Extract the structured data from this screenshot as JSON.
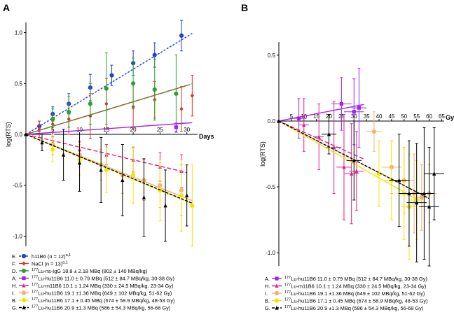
{
  "panels": {
    "a": "A",
    "b": "B"
  },
  "colors": {
    "E": "#1f3fd6",
    "F": "#e0302a",
    "D": "#2ca02c",
    "A": "#a020f0",
    "H": "#e0218a",
    "I": "#f4b070",
    "B": "#f2e600",
    "G": "#000000"
  },
  "chart_data": [
    {
      "type": "scatter",
      "panel": "A",
      "xlabel": "Days",
      "ylabel": "log(RTS)",
      "xlim": [
        0,
        32
      ],
      "ylim": [
        -1.1,
        1.1
      ],
      "xticks": [
        5,
        10,
        15,
        20,
        25,
        30
      ],
      "yticks": [
        -1.0,
        -0.5,
        0.0,
        0.5,
        1.0
      ],
      "ytick_labels": [
        "-1.0",
        "-0.5",
        "0.0",
        "0.5",
        "1.0"
      ],
      "series": [
        {
          "key": "E",
          "legend": "h11B6 (n = 12)",
          "sup": "a,1",
          "marker": "circle",
          "fit": [
            0.0,
            0.032
          ],
          "fit_range": [
            0,
            31
          ],
          "dash": "3,2",
          "x": [
            2.5,
            5,
            8,
            12,
            16,
            20,
            24,
            29
          ],
          "y": [
            0.08,
            0.2,
            0.3,
            0.46,
            0.58,
            0.7,
            0.78,
            0.97
          ],
          "err": [
            0.05,
            0.07,
            0.1,
            0.13,
            0.1,
            0.12,
            0.12,
            0.15
          ]
        },
        {
          "key": "F",
          "legend": "NaCl (n = 13)",
          "sup": "a,1",
          "marker": "diamond",
          "fit": [
            0.0,
            0.016
          ],
          "fit_range": [
            0,
            30
          ],
          "dash": "",
          "x": [
            2.5,
            5,
            8,
            12,
            15,
            20,
            24,
            29,
            31
          ],
          "y": [
            0.05,
            0.1,
            0.15,
            0.18,
            0.3,
            0.27,
            0.34,
            0.25,
            0.38
          ],
          "err": [
            0.08,
            0.1,
            0.15,
            0.22,
            0.25,
            0.22,
            0.18,
            0.22,
            0.2
          ]
        },
        {
          "key": "D",
          "legend": "Lu-ns-IgG 18.8 ± 2.18 MBq (802 ± 140 MBq/kg)",
          "sup": "177",
          "marker": "circle",
          "fit": [
            0.0,
            0.016
          ],
          "fit_range": [
            0,
            31
          ],
          "dash": "5,2,1,2",
          "x": [
            5,
            8,
            12,
            15,
            20,
            24,
            28
          ],
          "y": [
            0.15,
            0.22,
            0.3,
            0.45,
            0.5,
            0.44,
            0.4
          ],
          "err": [
            0.1,
            0.15,
            0.2,
            0.35,
            0.25,
            0.3,
            0.38
          ]
        },
        {
          "key": "A",
          "legend": "Lu-hu11B6 11.0 ± 0.79 MBq (512 ± 84.7 MBq/kg, 30-38 Gy)",
          "sup": "177",
          "marker": "square",
          "fit": [
            0.0,
            0.0037
          ],
          "fit_range": [
            0,
            31
          ],
          "dash": "",
          "x": [
            28
          ],
          "y": [
            0.07
          ],
          "err": [
            0.04
          ]
        },
        {
          "key": "H",
          "legend": "Lu-m11B6 10.1 ± 1.24 MBq (330 ± 24.5 MBq/kg, 23-34 Gy)",
          "sup": "177",
          "marker": "triangle",
          "fit": [
            0.0,
            -0.0125
          ],
          "fit_range": [
            0,
            30
          ],
          "dash": "6,3",
          "x": [
            5,
            10,
            15,
            20,
            25,
            29
          ],
          "y": [
            -0.08,
            -0.15,
            -0.2,
            -0.25,
            -0.32,
            -0.36
          ],
          "err": [
            0.06,
            0.08,
            0.1,
            0.12,
            0.14,
            0.16
          ]
        },
        {
          "key": "I",
          "legend": "Lu-hu11B6 19.1 ±1.36 MBq (649 ± 102 MBq/kg, 51-62 Gy)",
          "sup": "177",
          "marker": "circle",
          "fit": [
            0.0,
            -0.021
          ],
          "fit_range": [
            0,
            31
          ],
          "dash": "",
          "x": [
            5,
            10,
            14,
            18,
            22,
            25,
            29
          ],
          "y": [
            -0.1,
            -0.2,
            -0.3,
            -0.4,
            -0.45,
            -0.5,
            -0.55
          ],
          "err": [
            0.1,
            0.12,
            0.15,
            0.18,
            0.2,
            0.22,
            0.25
          ]
        },
        {
          "key": "B",
          "legend": "Lu-hu11B6 17.1 ± 0.45 MBq (674 ± 58.9 MBq/kg, 48-53 Gy)",
          "sup": "177",
          "marker": "circle",
          "fit": [
            0.0,
            -0.022
          ],
          "fit_range": [
            0,
            31
          ],
          "dash": "",
          "x": [
            5,
            10,
            15,
            20,
            25,
            29,
            31
          ],
          "y": [
            -0.15,
            -0.25,
            -0.35,
            -0.4,
            -0.55,
            -0.6,
            -0.7
          ],
          "err": [
            0.12,
            0.15,
            0.22,
            0.28,
            0.3,
            0.35,
            0.4
          ]
        },
        {
          "key": "G",
          "legend": "Lu-hu11B6 20.9 ±1.3 MBq (586 ± 54.3 MBq/kg, 56-68 Gy)",
          "sup": "177",
          "marker": "triangle",
          "fit": [
            0.0,
            -0.0218
          ],
          "fit_range": [
            0,
            31
          ],
          "dash": "4,2",
          "x": [
            3,
            7,
            10,
            14,
            18,
            22,
            26,
            30
          ],
          "y": [
            -0.08,
            -0.2,
            -0.28,
            -0.35,
            -0.45,
            -0.62,
            -0.7,
            -0.6
          ],
          "err": [
            0.08,
            0.25,
            0.28,
            0.32,
            0.35,
            0.38,
            0.35,
            0.3
          ]
        }
      ]
    },
    {
      "type": "scatter",
      "panel": "B",
      "xlabel": "Gy",
      "ylabel": "log(RTS)",
      "xlim": [
        0,
        66
      ],
      "ylim": [
        -1.1,
        0.6
      ],
      "xticks": [
        5,
        10,
        15,
        20,
        25,
        30,
        35,
        40,
        45,
        50,
        55,
        60,
        65
      ],
      "yticks": [
        -1.0,
        -0.5,
        0.0,
        0.5
      ],
      "ytick_labels": [
        "-1.0",
        "-0.5",
        "0.0",
        "0.5"
      ],
      "series": [
        {
          "key": "A",
          "legend": "Lu-hu11B6 11.0 ± 0.79 MBq (512 ± 84.7 MBq/kg, 30-38 Gy)",
          "sup": "177",
          "marker": "square",
          "fit": [
            0.0,
            0.0037
          ],
          "fit_range": [
            0,
            34
          ],
          "dash": "",
          "x": [
            8,
            25,
            30,
            32
          ],
          "y": [
            0.02,
            0.13,
            0.07,
            0.1
          ],
          "err": [
            0.15,
            0.2,
            0.25,
            0.3
          ],
          "xerr": [
            3,
            4,
            4,
            3
          ]
        },
        {
          "key": "H",
          "legend": "Lu-m11B6 10.1 ± 1.24 MBq (330 ± 24.5 MBq/kg, 23-34 Gy)",
          "sup": "177",
          "marker": "triangle",
          "fit": [
            0.0,
            -0.0085
          ],
          "fit_range": [
            0,
            34
          ],
          "dash": "6,3",
          "x": [
            10,
            16,
            22,
            26,
            29,
            31
          ],
          "y": [
            -0.03,
            -0.12,
            -0.2,
            -0.35,
            -0.4,
            -0.38
          ],
          "err": [
            0.2,
            0.25,
            0.35,
            0.4,
            0.38,
            0.3
          ],
          "xerr": [
            2,
            2,
            3,
            3,
            3,
            3
          ]
        },
        {
          "key": "I",
          "legend": "Lu-hu11B6 19.1 ±1.36 MBq (649 ± 102 MBq/kg, 51-62 Gy)",
          "sup": "177",
          "marker": "circle",
          "fit": [
            0.0,
            -0.0098
          ],
          "fit_range": [
            0,
            60
          ],
          "dash": "",
          "x": [
            38,
            45,
            50,
            54,
            57,
            60
          ],
          "y": [
            -0.08,
            -0.35,
            -0.45,
            -0.55,
            -0.58,
            -0.55
          ],
          "err": [
            0.15,
            0.2,
            0.25,
            0.3,
            0.25,
            0.22
          ],
          "xerr": [
            3,
            4,
            4,
            3,
            3,
            3
          ]
        },
        {
          "key": "B",
          "legend": "Lu-hu11B6 17.1 ± 0.45 MBq (674 ± 58.9 MBq/kg, 48-53 Gy)",
          "sup": "177",
          "marker": "circle",
          "fit": [
            0.0,
            -0.0108
          ],
          "fit_range": [
            0,
            56
          ],
          "dash": "",
          "x": [
            40,
            45,
            50,
            52,
            55
          ],
          "y": [
            -0.4,
            -0.45,
            -0.55,
            -0.65,
            -0.6
          ],
          "err": [
            0.25,
            0.3,
            0.35,
            0.4,
            0.3
          ],
          "xerr": [
            2,
            3,
            3,
            3,
            3
          ]
        },
        {
          "key": "G",
          "legend": "Lu-hu11B6 20.9 ±1.3 MBq (586 ± 54.3 MBq/kg, 56-68 Gy)",
          "sup": "177",
          "marker": "triangle",
          "fit": [
            0.0,
            -0.0098
          ],
          "fit_range": [
            0,
            60
          ],
          "dash": "4,2",
          "x": [
            20,
            30,
            48,
            52,
            55,
            58,
            60,
            62
          ],
          "y": [
            -0.1,
            -0.3,
            -0.45,
            -0.55,
            -0.62,
            -0.55,
            -0.65,
            -0.4
          ],
          "err": [
            0.15,
            0.3,
            0.35,
            0.4,
            0.45,
            0.5,
            0.45,
            0.35
          ],
          "xerr": [
            3,
            3,
            4,
            4,
            4,
            4,
            4,
            4
          ]
        }
      ]
    }
  ],
  "legend_a_keys": [
    "E",
    "F",
    "D",
    "A",
    "H",
    "I",
    "B",
    "G"
  ],
  "legend_b_keys": [
    "A",
    "H",
    "I",
    "B",
    "G"
  ]
}
